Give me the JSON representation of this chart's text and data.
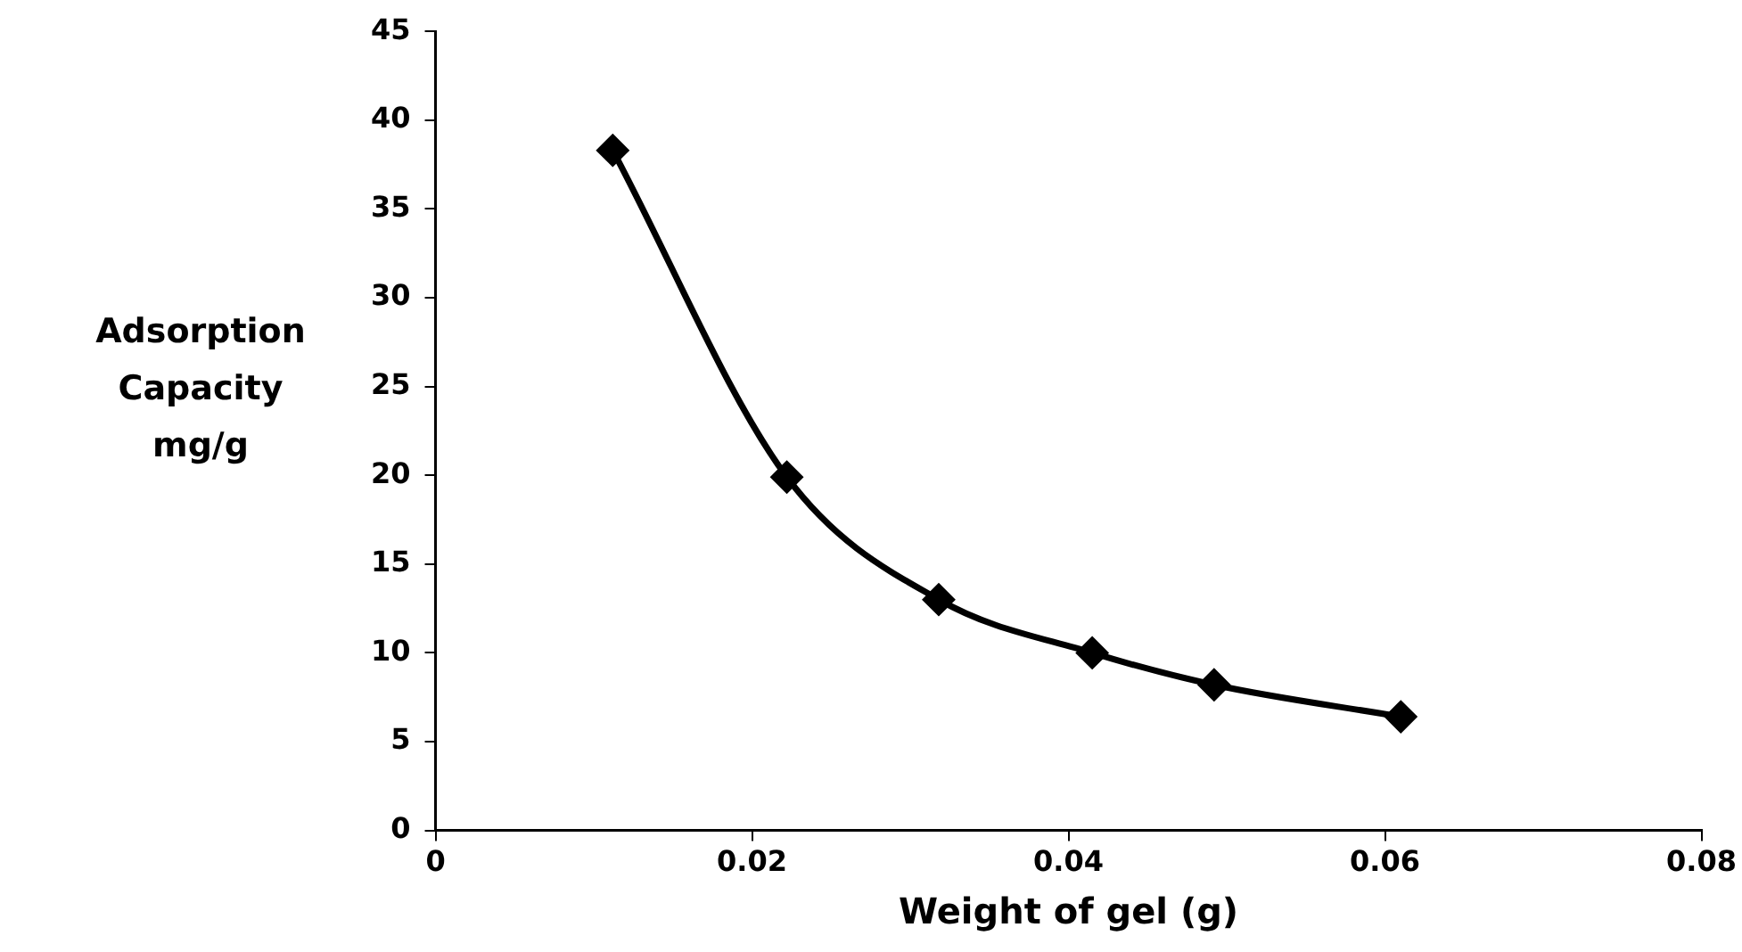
{
  "chart_data": {
    "type": "line",
    "xlabel": "Weight of gel (g)",
    "ylabel": "Adsorption Capacity mg/g",
    "x": [
      0.0112,
      0.0222,
      0.0318,
      0.0415,
      0.0492,
      0.061
    ],
    "series": [
      {
        "color": "#000000",
        "values": [
          38.3,
          19.9,
          13.0,
          10.0,
          8.2,
          6.4
        ]
      }
    ],
    "xlim": [
      0,
      0.08
    ],
    "xticks": [
      0,
      0.02,
      0.04,
      0.06,
      0.08
    ],
    "ylim": [
      0,
      45
    ],
    "yticks": [
      0,
      5,
      10,
      15,
      20,
      25,
      30,
      35,
      40,
      45
    ],
    "grid": false,
    "legend": false,
    "marker": "diamond",
    "line_style": "solid"
  }
}
